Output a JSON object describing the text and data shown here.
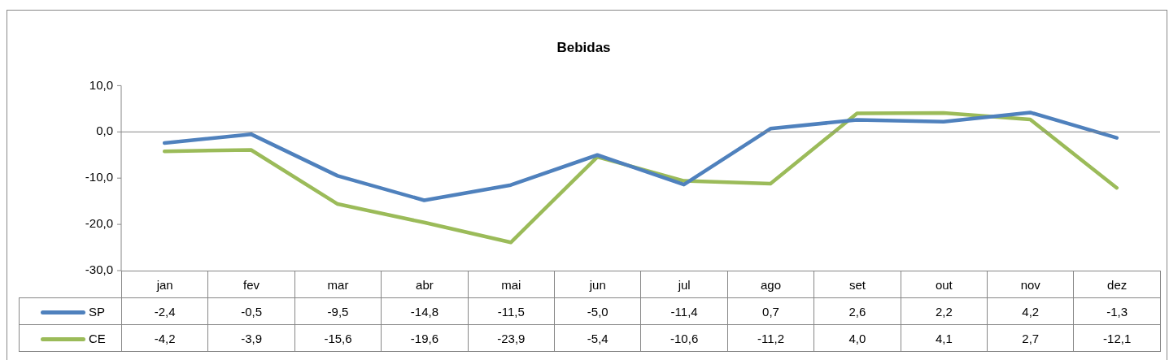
{
  "chart_data": {
    "type": "line",
    "title": "Bebidas",
    "categories": [
      "jan",
      "fev",
      "mar",
      "abr",
      "mai",
      "jun",
      "jul",
      "ago",
      "set",
      "out",
      "nov",
      "dez"
    ],
    "series": [
      {
        "name": "SP",
        "color": "#4f81bd",
        "values": [
          -2.4,
          -0.5,
          -9.5,
          -14.8,
          -11.5,
          -5.0,
          -11.4,
          0.7,
          2.6,
          2.2,
          4.2,
          -1.3
        ],
        "value_labels": [
          "-2,4",
          "-0,5",
          "-9,5",
          "-14,8",
          "-11,5",
          "-5,0",
          "-11,4",
          "0,7",
          "2,6",
          "2,2",
          "4,2",
          "-1,3"
        ]
      },
      {
        "name": "CE",
        "color": "#9bbb59",
        "values": [
          -4.2,
          -3.9,
          -15.6,
          -19.6,
          -23.9,
          -5.4,
          -10.6,
          -11.2,
          4.0,
          4.1,
          2.7,
          -12.1
        ],
        "value_labels": [
          "-4,2",
          "-3,9",
          "-15,6",
          "-19,6",
          "-23,9",
          "-5,4",
          "-10,6",
          "-11,2",
          "4,0",
          "4,1",
          "2,7",
          "-12,1"
        ]
      }
    ],
    "ylim": [
      -30,
      10
    ],
    "yticks": [
      {
        "value": -30,
        "label": "-30,0"
      },
      {
        "value": -20,
        "label": "-20,0"
      },
      {
        "value": -10,
        "label": "-10,0"
      },
      {
        "value": 0,
        "label": "0,0"
      },
      {
        "value": 10,
        "label": "10,0"
      }
    ],
    "ref_lines": [
      {
        "axis": "y",
        "value": 0,
        "color": "#868686"
      }
    ],
    "grid": false,
    "legend": "bottom",
    "marker": "none",
    "line_style": "solid"
  }
}
